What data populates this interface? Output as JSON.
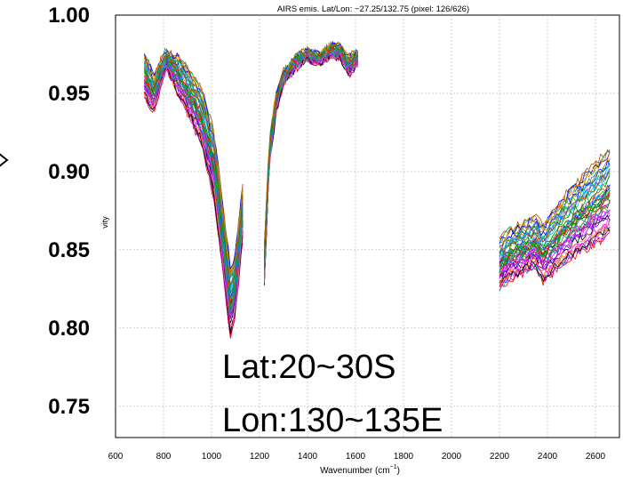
{
  "chart_data": {
    "type": "line",
    "title": "AIRS emis. Lat/Lon: −27.25/132.75 (pixel: 126/626)",
    "xlabel_main": "Wavenumber (cm",
    "xlabel_sup": "−1",
    "xlabel_close": ")",
    "ylabel": "vity",
    "xlim": [
      600,
      2700
    ],
    "ylim": [
      0.73,
      1.0
    ],
    "grid": true,
    "x_ticks": [
      600,
      800,
      1000,
      1200,
      1400,
      1600,
      1800,
      2000,
      2200,
      2400,
      2600
    ],
    "y_ticks": [
      "1.00",
      "0.95",
      "0.90",
      "0.85",
      "0.80",
      "0.75"
    ],
    "y_tick_values": [
      1.0,
      0.95,
      0.9,
      0.85,
      0.8,
      0.75
    ],
    "annotations": [
      "Lat:20~30S",
      "Lon:130~135E"
    ],
    "series_count": 48,
    "band_segments": [
      {
        "x": [
          720,
          760,
          810,
          860,
          910,
          960,
          1010,
          1050,
          1080,
          1100,
          1130
        ],
        "mean": [
          0.962,
          0.95,
          0.972,
          0.962,
          0.95,
          0.935,
          0.905,
          0.855,
          0.815,
          0.83,
          0.875
        ],
        "spread": [
          0.014,
          0.012,
          0.006,
          0.012,
          0.016,
          0.018,
          0.022,
          0.022,
          0.022,
          0.02,
          0.018
        ]
      },
      {
        "x": [
          1220,
          1240,
          1270,
          1300,
          1350,
          1400,
          1450,
          1500,
          1540,
          1570,
          1610
        ],
        "mean": [
          0.84,
          0.91,
          0.945,
          0.96,
          0.97,
          0.975,
          0.972,
          0.978,
          0.976,
          0.968,
          0.972
        ],
        "spread": [
          0.012,
          0.008,
          0.006,
          0.004,
          0.004,
          0.003,
          0.003,
          0.003,
          0.004,
          0.006,
          0.004
        ]
      },
      {
        "x": [
          2200,
          2240,
          2280,
          2320,
          2350,
          2380,
          2420,
          2480,
          2540,
          2600,
          2660
        ],
        "mean": [
          0.84,
          0.848,
          0.85,
          0.853,
          0.856,
          0.848,
          0.855,
          0.865,
          0.873,
          0.88,
          0.888
        ],
        "spread": [
          0.016,
          0.016,
          0.016,
          0.016,
          0.016,
          0.018,
          0.02,
          0.022,
          0.024,
          0.026,
          0.028
        ]
      }
    ],
    "colors": [
      "#ff0000",
      "#00cc00",
      "#0000ff",
      "#ff00ff",
      "#00cccc",
      "#000000",
      "#ff8800",
      "#8800ff",
      "#008800",
      "#cc0066",
      "#0088ff",
      "#888800",
      "#ff6699",
      "#6666ff",
      "#00aa66",
      "#aa4400"
    ]
  }
}
